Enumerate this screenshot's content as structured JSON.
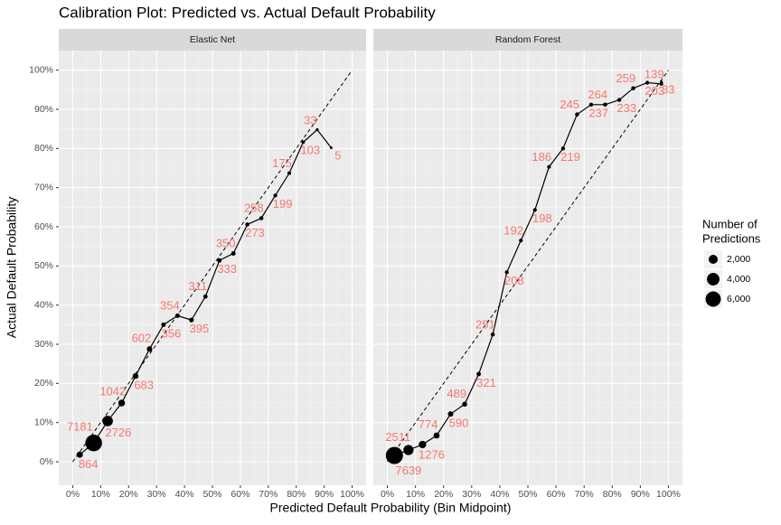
{
  "chart_data": {
    "type": "line",
    "title": "Calibration Plot: Predicted vs. Actual Default Probability",
    "xlabel": "Predicted Default Probability (Bin Midpoint)",
    "ylabel": "Actual Default Probability",
    "xlim": [
      -5,
      105
    ],
    "ylim": [
      -6,
      105
    ],
    "xticks": [
      {
        "value": 0,
        "label": "0%"
      },
      {
        "value": 10,
        "label": "10%"
      },
      {
        "value": 20,
        "label": "20%"
      },
      {
        "value": 30,
        "label": "30%"
      },
      {
        "value": 40,
        "label": "40%"
      },
      {
        "value": 50,
        "label": "50%"
      },
      {
        "value": 60,
        "label": "60%"
      },
      {
        "value": 70,
        "label": "70%"
      },
      {
        "value": 80,
        "label": "80%"
      },
      {
        "value": 90,
        "label": "90%"
      },
      {
        "value": 100,
        "label": "100%"
      }
    ],
    "yticks": [
      {
        "value": 0,
        "label": "0%"
      },
      {
        "value": 10,
        "label": "10%"
      },
      {
        "value": 20,
        "label": "20%"
      },
      {
        "value": 30,
        "label": "30%"
      },
      {
        "value": 40,
        "label": "40%"
      },
      {
        "value": 50,
        "label": "50%"
      },
      {
        "value": 60,
        "label": "60%"
      },
      {
        "value": 70,
        "label": "70%"
      },
      {
        "value": 80,
        "label": "80%"
      },
      {
        "value": 90,
        "label": "90%"
      },
      {
        "value": 100,
        "label": "100%"
      }
    ],
    "grid": true,
    "line_color": "#000000",
    "label_color": "#f8766d",
    "legend": {
      "title": [
        "Number of",
        "Predictions"
      ],
      "position": "right",
      "breaks": [
        {
          "value": 2000,
          "label": "2,000"
        },
        {
          "value": 4000,
          "label": "4,000"
        },
        {
          "value": 6000,
          "label": "6,000"
        }
      ]
    },
    "facets": [
      {
        "name": "Elastic Net",
        "x": [
          2.5,
          7.5,
          12.5,
          17.5,
          22.5,
          27.5,
          32.5,
          37.5,
          42.5,
          47.5,
          52.5,
          57.5,
          62.5,
          67.5,
          72.5,
          77.5,
          82.5,
          87.5,
          92.5
        ],
        "values": [
          1.8,
          4.8,
          10.4,
          15.0,
          21.9,
          28.8,
          35.0,
          37.3,
          36.2,
          42.2,
          51.4,
          53.2,
          60.6,
          62.2,
          68.0,
          73.7,
          81.6,
          84.8,
          80.2
        ],
        "counts": [
          864,
          7181,
          2726,
          1042,
          683,
          602,
          356,
          354,
          395,
          311,
          333,
          350,
          273,
          258,
          199,
          175,
          103,
          33,
          5
        ]
      },
      {
        "name": "Random Forest",
        "x": [
          2.5,
          7.5,
          12.5,
          17.5,
          22.5,
          27.5,
          32.5,
          37.5,
          42.5,
          47.5,
          52.5,
          57.5,
          62.5,
          67.5,
          72.5,
          77.5,
          82.5,
          87.5,
          92.5,
          97.5,
          97.5
        ],
        "values": [
          1.6,
          3.0,
          4.4,
          6.7,
          12.2,
          14.7,
          22.4,
          32.5,
          48.4,
          56.5,
          64.3,
          75.3,
          80.0,
          88.7,
          91.2,
          91.2,
          92.4,
          95.4,
          96.8,
          96.5,
          97.0
        ],
        "counts": [
          7639,
          2511,
          1276,
          774,
          590,
          489,
          321,
          251,
          208,
          192,
          198,
          186,
          219,
          245,
          237,
          264,
          233,
          259,
          203,
          139,
          33
        ]
      }
    ]
  }
}
